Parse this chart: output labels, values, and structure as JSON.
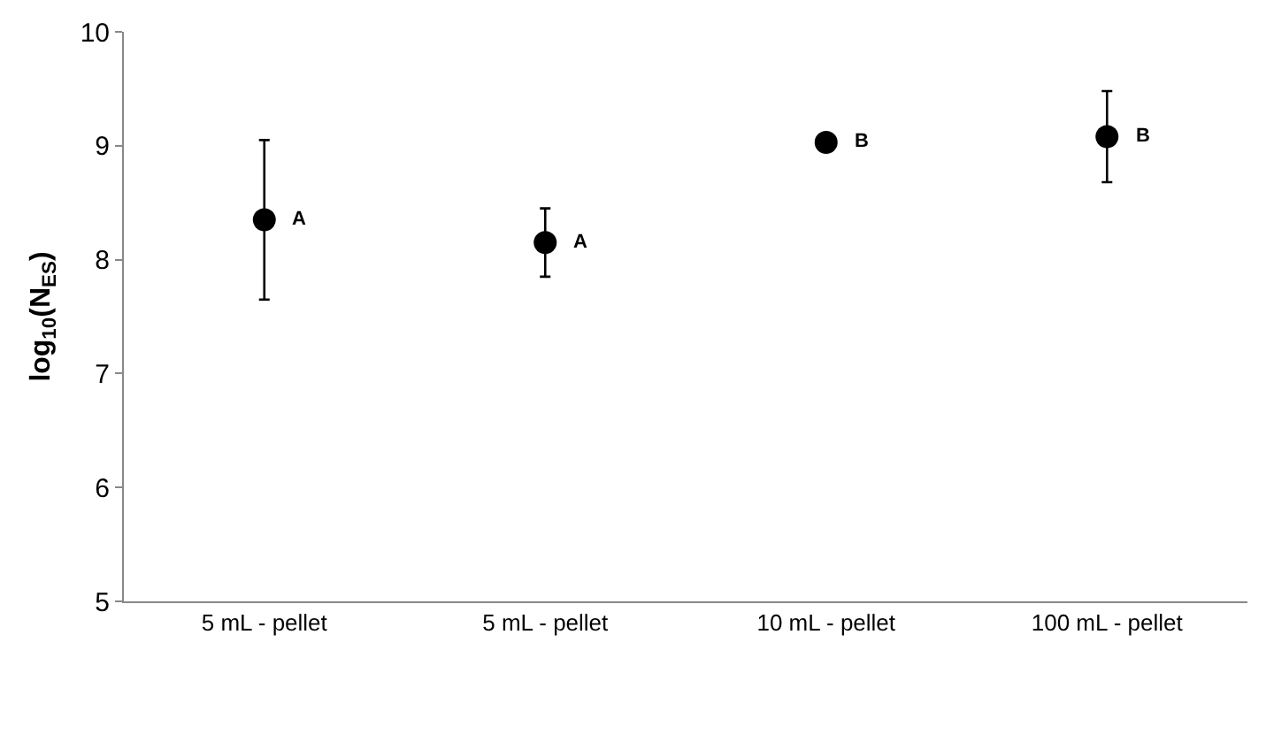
{
  "chart_data": {
    "type": "scatter",
    "ylabel": "log$_{10}$(N$_{ES}$)",
    "categories": [
      "5 mL - pellet",
      "5 mL - pellet",
      "10 mL - pellet",
      "100 mL - pellet"
    ],
    "values": [
      8.35,
      8.15,
      9.03,
      9.08
    ],
    "errors": [
      [
        7.65,
        9.05
      ],
      [
        7.85,
        8.45
      ],
      null,
      [
        8.68,
        9.48
      ]
    ],
    "color": "#000000",
    "marker": "circle",
    "ylim": [
      5,
      10
    ],
    "yticks": [
      5,
      6,
      7,
      8,
      9,
      10
    ],
    "annotations": [
      "A",
      "A",
      "B",
      "B"
    ]
  }
}
